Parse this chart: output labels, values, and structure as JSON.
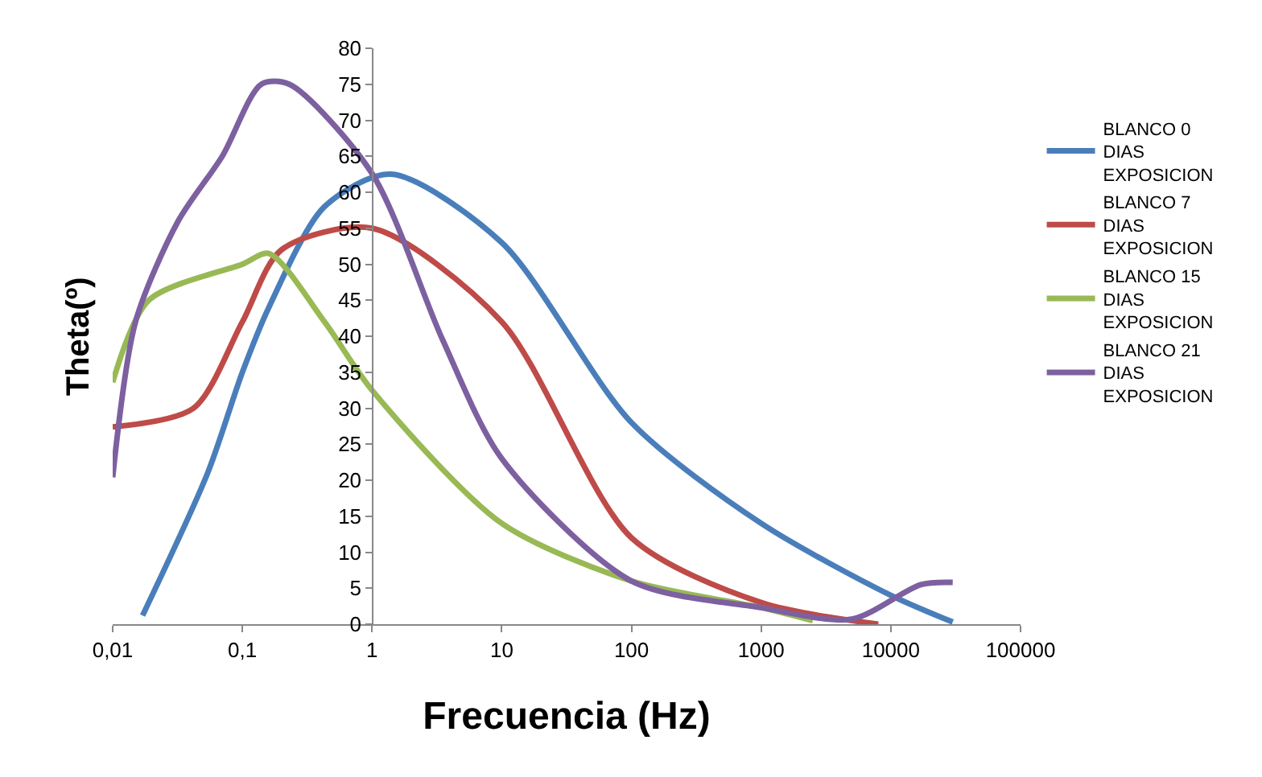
{
  "chart_data": {
    "type": "line",
    "xlabel": "Frecuencia (Hz)",
    "ylabel": "Theta(º)",
    "log": "x",
    "xlim": [
      0.01,
      100000
    ],
    "xticks": [
      {
        "value": 0.01,
        "label": "0,01"
      },
      {
        "value": 0.1,
        "label": "0,1"
      },
      1,
      10,
      100,
      1000,
      10000,
      100000
    ],
    "ylim": [
      0,
      80
    ],
    "yticks": [
      0,
      5,
      10,
      15,
      20,
      25,
      30,
      35,
      40,
      45,
      50,
      55,
      60,
      65,
      70,
      75,
      80
    ],
    "legend": "right",
    "marker": "none",
    "line_style": "solid",
    "series": [
      {
        "name": "BLANCO 0 DIAS EXPOSICION",
        "color": "#4a7ebb",
        "x": [
          0.017,
          0.054,
          0.1,
          0.16,
          0.43,
          1.4,
          10,
          100,
          1000,
          10000,
          30000
        ],
        "values": [
          1.2,
          21,
          35,
          44,
          58,
          62.5,
          53,
          28,
          14,
          4,
          0.3
        ]
      },
      {
        "name": "BLANCO 7 DIAS EXPOSICION",
        "color": "#be4b48",
        "x": [
          0.01,
          0.042,
          0.1,
          0.2,
          1,
          10,
          100,
          1000,
          8000
        ],
        "values": [
          27.4,
          30,
          42,
          52,
          55,
          42,
          12,
          3,
          0
        ]
      },
      {
        "name": "BLANCO 15 DIAS EXPOSICION",
        "color": "#98b954",
        "x": [
          0.01,
          0.019,
          0.1,
          0.16,
          0.43,
          1,
          10,
          100,
          1000,
          2500
        ],
        "values": [
          33.6,
          45,
          50,
          51.5,
          42,
          32.5,
          14,
          6,
          2.3,
          0.5
        ]
      },
      {
        "name": "BLANCO 21 DIAS EXPOSICION",
        "color": "#7d60a0",
        "x": [
          0.01,
          0.015,
          0.032,
          0.07,
          0.14,
          0.23,
          1,
          3.5,
          10,
          100,
          1000,
          5000,
          17000,
          30000
        ],
        "values": [
          20.4,
          42,
          56,
          65,
          75,
          75,
          62.6,
          39.5,
          23,
          6,
          2.3,
          0.7,
          5.5,
          5.8
        ]
      }
    ]
  }
}
